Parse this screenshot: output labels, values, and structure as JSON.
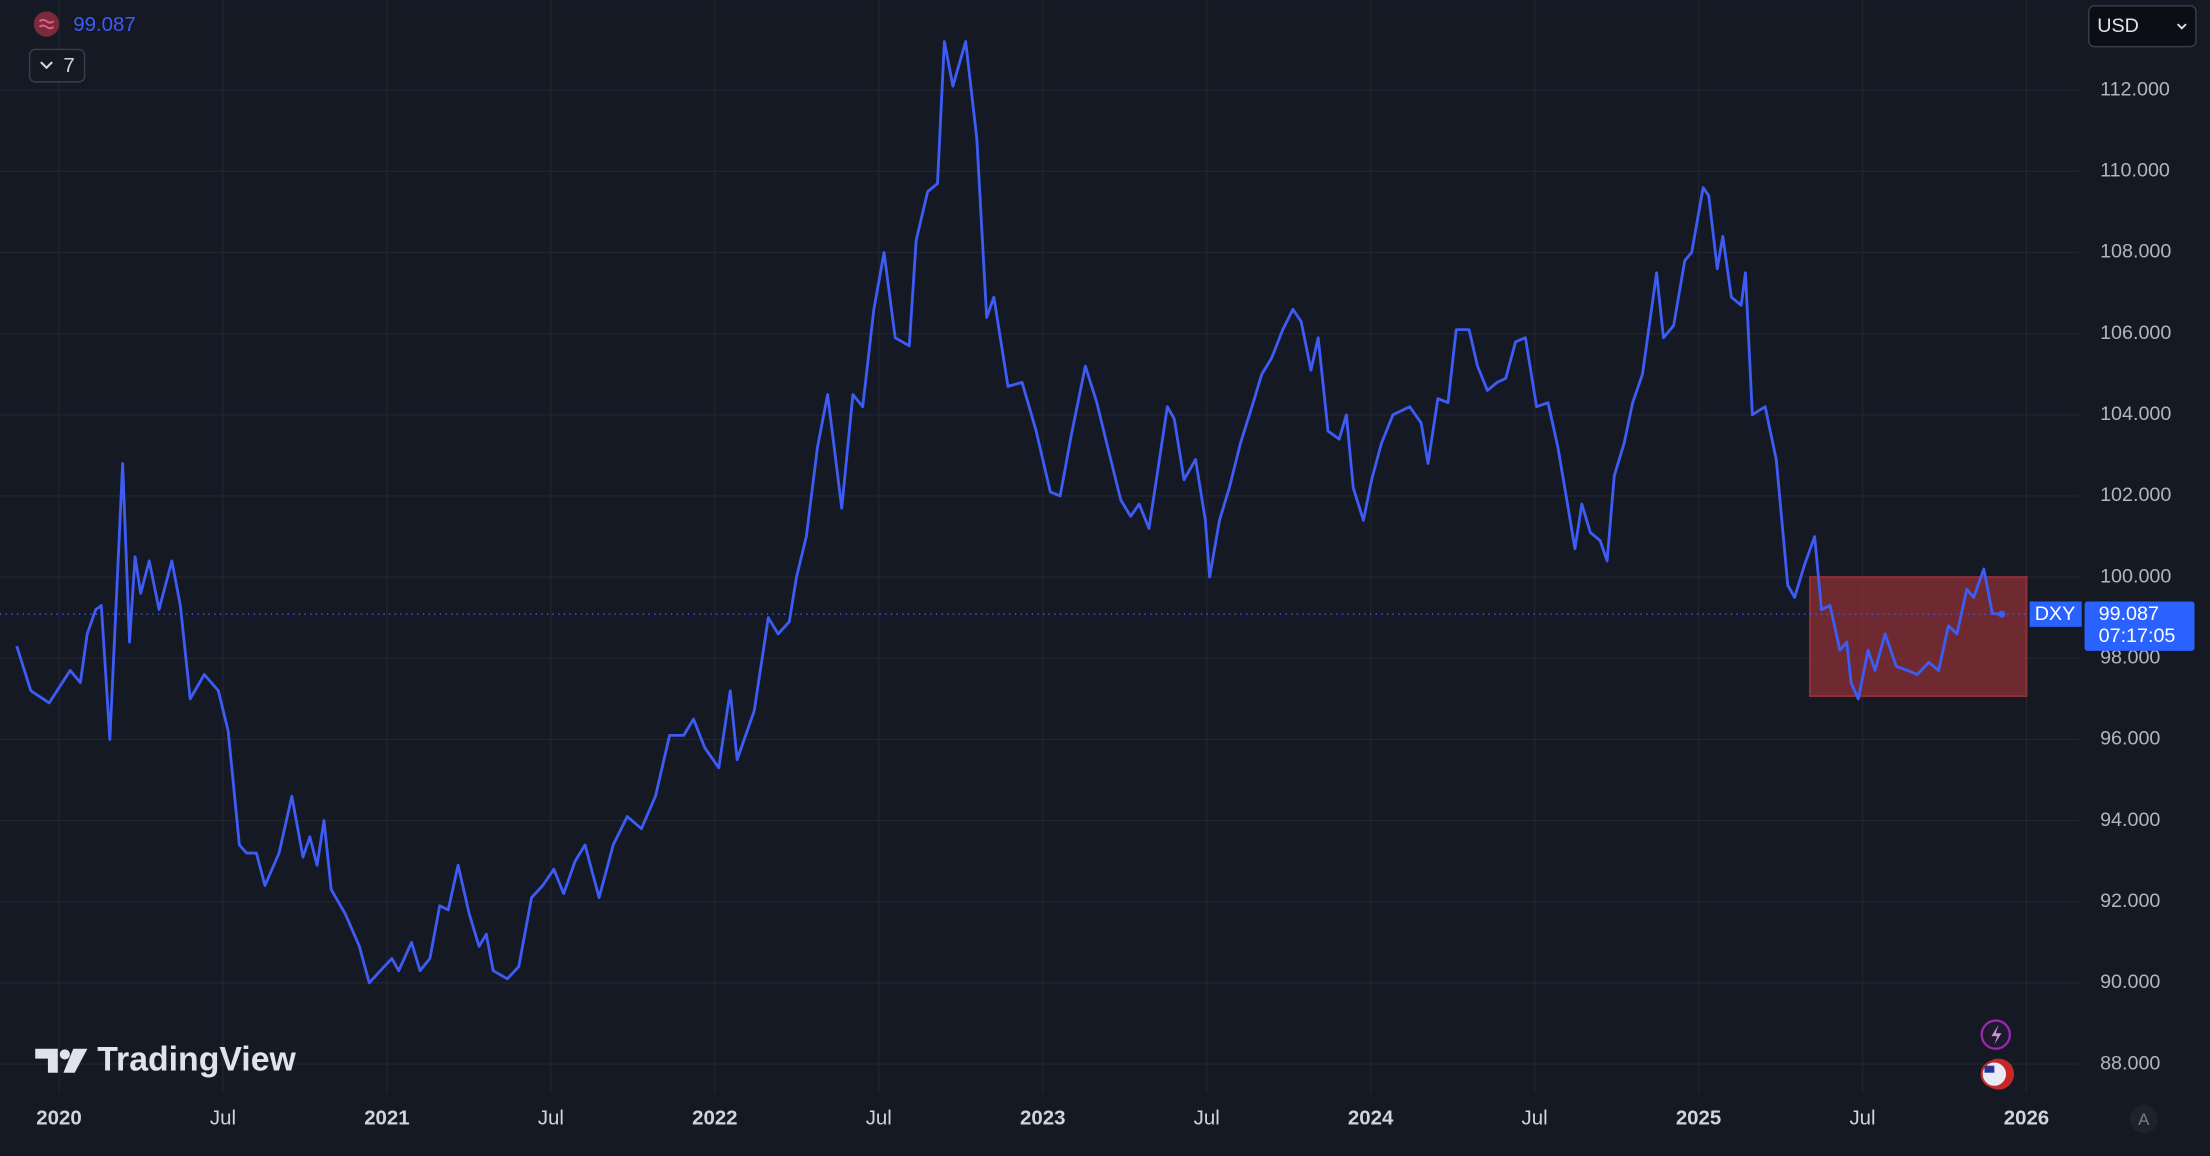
{
  "chart_data": {
    "type": "line",
    "x": [
      2019.871,
      2019.914,
      2019.97,
      2020.034,
      2020.065,
      2020.086,
      2020.112,
      2020.129,
      2020.155,
      2020.194,
      2020.215,
      2020.232,
      2020.249,
      2020.275,
      2020.305,
      2020.344,
      2020.37,
      2020.4,
      2020.443,
      2020.486,
      2020.516,
      2020.55,
      2020.572,
      2020.602,
      2020.628,
      2020.671,
      2020.71,
      2020.744,
      2020.765,
      2020.787,
      2020.808,
      2020.83,
      2020.873,
      2020.916,
      2020.946,
      2020.98,
      2021.015,
      2021.036,
      2021.075,
      2021.101,
      2021.131,
      2021.161,
      2021.187,
      2021.217,
      2021.251,
      2021.281,
      2021.303,
      2021.324,
      2021.367,
      2021.402,
      2021.441,
      2021.475,
      2021.509,
      2021.539,
      2021.574,
      2021.604,
      2021.647,
      2021.69,
      2021.733,
      2021.776,
      2021.819,
      2021.862,
      2021.905,
      2021.935,
      2021.969,
      2022.012,
      2022.047,
      2022.068,
      2022.12,
      2022.163,
      2022.193,
      2022.227,
      2022.249,
      2022.279,
      2022.313,
      2022.344,
      2022.387,
      2022.421,
      2022.451,
      2022.485,
      2022.516,
      2022.55,
      2022.593,
      2022.614,
      2022.649,
      2022.679,
      2022.7,
      2022.726,
      2022.765,
      2022.799,
      2022.829,
      2022.851,
      2022.894,
      2022.937,
      2022.98,
      2023.023,
      2023.053,
      2023.087,
      2023.13,
      2023.165,
      2023.195,
      2023.238,
      2023.268,
      2023.294,
      2023.324,
      2023.354,
      2023.38,
      2023.401,
      2023.431,
      2023.466,
      2023.496,
      2023.509,
      2023.539,
      2023.569,
      2023.603,
      2023.638,
      2023.668,
      2023.698,
      2023.732,
      2023.763,
      2023.788,
      2023.818,
      2023.84,
      2023.87,
      2023.904,
      2023.926,
      2023.947,
      2023.978,
      2024.003,
      2024.033,
      2024.068,
      2024.119,
      2024.154,
      2024.175,
      2024.205,
      2024.236,
      2024.261,
      2024.3,
      2024.326,
      2024.356,
      2024.386,
      2024.412,
      2024.442,
      2024.472,
      2024.506,
      2024.541,
      2024.571,
      2024.592,
      2024.623,
      2024.644,
      2024.67,
      2024.7,
      2024.721,
      2024.743,
      2024.773,
      2024.799,
      2024.829,
      2024.872,
      2024.893,
      2024.924,
      2024.958,
      2024.979,
      2025.014,
      2025.031,
      2025.057,
      2025.074,
      2025.1,
      2025.13,
      2025.143,
      2025.164,
      2025.203,
      2025.237,
      2025.272,
      2025.293,
      2025.323,
      2025.354,
      2025.375,
      2025.401,
      2025.431,
      2025.452,
      2025.465,
      2025.487,
      2025.517,
      2025.538,
      2025.569,
      2025.603,
      2025.637,
      2025.667,
      2025.702,
      2025.732,
      2025.762,
      2025.788,
      2025.818,
      2025.839,
      2025.87,
      2025.896,
      2025.925
    ],
    "series": [
      {
        "name": "DXY",
        "color": "#3d5cf5",
        "values": [
          98.3,
          97.2,
          96.9,
          97.7,
          97.4,
          98.6,
          99.2,
          99.3,
          96.0,
          102.8,
          98.4,
          100.5,
          99.6,
          100.4,
          99.2,
          100.4,
          99.3,
          97.0,
          97.6,
          97.2,
          96.2,
          93.4,
          93.2,
          93.2,
          92.4,
          93.2,
          94.6,
          93.1,
          93.6,
          92.9,
          94.0,
          92.3,
          91.7,
          90.9,
          90.0,
          90.3,
          90.6,
          90.3,
          91.0,
          90.3,
          90.6,
          91.9,
          91.8,
          92.9,
          91.7,
          90.9,
          91.2,
          90.3,
          90.1,
          90.4,
          92.1,
          92.4,
          92.8,
          92.2,
          93.0,
          93.4,
          92.1,
          93.4,
          94.1,
          93.8,
          94.6,
          96.1,
          96.1,
          96.5,
          95.8,
          95.3,
          97.2,
          95.5,
          96.7,
          99.0,
          98.6,
          98.9,
          100.0,
          101.0,
          103.2,
          104.5,
          101.7,
          104.5,
          104.2,
          106.6,
          108.0,
          105.9,
          105.7,
          108.3,
          109.5,
          109.7,
          113.2,
          112.1,
          113.2,
          110.8,
          106.4,
          106.9,
          104.7,
          104.8,
          103.6,
          102.1,
          102.0,
          103.5,
          105.2,
          104.3,
          103.3,
          101.9,
          101.5,
          101.8,
          101.2,
          102.8,
          104.2,
          103.9,
          102.4,
          102.9,
          101.4,
          100.0,
          101.4,
          102.2,
          103.3,
          104.2,
          105.0,
          105.4,
          106.1,
          106.6,
          106.3,
          105.1,
          105.9,
          103.6,
          103.4,
          104.0,
          102.2,
          101.4,
          102.4,
          103.3,
          104.0,
          104.2,
          103.8,
          102.8,
          104.4,
          104.3,
          106.1,
          106.1,
          105.2,
          104.6,
          104.8,
          104.9,
          105.8,
          105.9,
          104.2,
          104.3,
          103.2,
          102.2,
          100.7,
          101.8,
          101.1,
          100.9,
          100.4,
          102.5,
          103.3,
          104.3,
          105.0,
          107.5,
          105.9,
          106.2,
          107.8,
          108.0,
          109.6,
          109.4,
          107.6,
          108.4,
          106.9,
          106.7,
          107.5,
          104.0,
          104.2,
          102.9,
          99.8,
          99.5,
          100.3,
          101.0,
          99.2,
          99.3,
          98.2,
          98.4,
          97.4,
          97.0,
          98.2,
          97.7,
          98.6,
          97.8,
          97.7,
          97.6,
          97.9,
          97.7,
          98.8,
          98.6,
          99.7,
          99.5,
          100.2,
          99.1,
          99.087
        ]
      }
    ],
    "xlim": [
      2019.82,
      2026.16
    ],
    "ylim": [
      87.3,
      114.22
    ],
    "xticks": [
      2020,
      {
        "value": 2020.5,
        "label": "Jul"
      },
      2021,
      {
        "value": 2021.5,
        "label": "Jul"
      },
      2022,
      {
        "value": 2022.5,
        "label": "Jul"
      },
      2023,
      {
        "value": 2023.5,
        "label": "Jul"
      },
      2024,
      {
        "value": 2024.5,
        "label": "Jul"
      },
      2025,
      {
        "value": 2025.5,
        "label": "Jul"
      },
      2026
    ],
    "yticks": [
      {
        "value": 88,
        "label": "88.000"
      },
      {
        "value": 90,
        "label": "90.000"
      },
      {
        "value": 92,
        "label": "92.000"
      },
      {
        "value": 94,
        "label": "94.000"
      },
      {
        "value": 96,
        "label": "96.000"
      },
      {
        "value": 98,
        "label": "98.000"
      },
      {
        "value": 100,
        "label": "100.000"
      },
      {
        "value": 102,
        "label": "102.000"
      },
      {
        "value": 104,
        "label": "104.000"
      },
      {
        "value": 106,
        "label": "106.000"
      },
      {
        "value": 108,
        "label": "108.000"
      },
      {
        "value": 110,
        "label": "110.000"
      },
      {
        "value": 112,
        "label": "112.000"
      }
    ],
    "grid": true,
    "highlight": {
      "x": [
        2025.34,
        2026.0
      ],
      "y": [
        97.07,
        100.0
      ],
      "color": "#8e2f35"
    }
  },
  "ui": {
    "currency": "USD",
    "indicator_count": "7",
    "countdown": "07:17:05",
    "logo": "TradingView",
    "scale_mode": "A"
  }
}
